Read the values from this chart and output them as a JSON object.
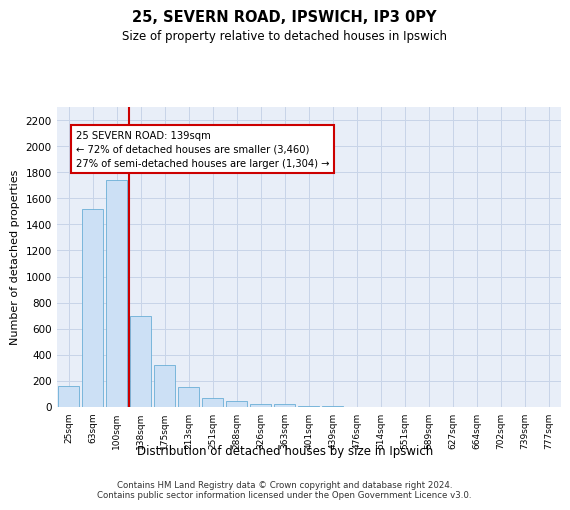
{
  "title1": "25, SEVERN ROAD, IPSWICH, IP3 0PY",
  "title2": "Size of property relative to detached houses in Ipswich",
  "xlabel": "Distribution of detached houses by size in Ipswich",
  "ylabel": "Number of detached properties",
  "categories": [
    "25sqm",
    "63sqm",
    "100sqm",
    "138sqm",
    "175sqm",
    "213sqm",
    "251sqm",
    "288sqm",
    "326sqm",
    "363sqm",
    "401sqm",
    "439sqm",
    "476sqm",
    "514sqm",
    "551sqm",
    "589sqm",
    "627sqm",
    "664sqm",
    "702sqm",
    "739sqm",
    "777sqm"
  ],
  "values": [
    160,
    1520,
    1740,
    700,
    320,
    150,
    70,
    45,
    25,
    20,
    10,
    5,
    3,
    0,
    0,
    0,
    0,
    0,
    0,
    0,
    0
  ],
  "bar_color": "#cce0f5",
  "bar_edge_color": "#6aaed6",
  "vline_color": "#cc0000",
  "annotation_text": "25 SEVERN ROAD: 139sqm\n← 72% of detached houses are smaller (3,460)\n27% of semi-detached houses are larger (1,304) →",
  "annotation_box_color": "#ffffff",
  "annotation_box_edge": "#cc0000",
  "ylim": [
    0,
    2300
  ],
  "yticks": [
    0,
    200,
    400,
    600,
    800,
    1000,
    1200,
    1400,
    1600,
    1800,
    2000,
    2200
  ],
  "footer1": "Contains HM Land Registry data © Crown copyright and database right 2024.",
  "footer2": "Contains public sector information licensed under the Open Government Licence v3.0.",
  "grid_color": "#c8d4e8",
  "bg_color": "#e8eef8"
}
